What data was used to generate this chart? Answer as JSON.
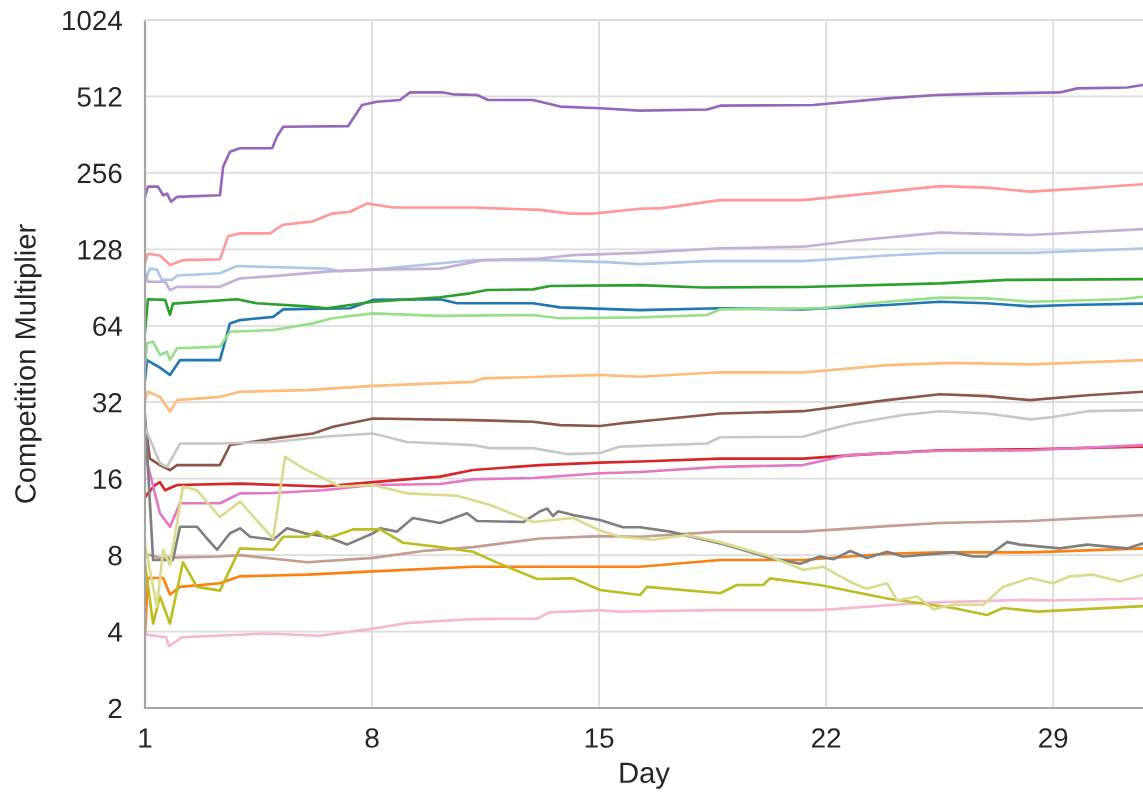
{
  "chart_data": {
    "type": "line",
    "xlabel": "Day",
    "ylabel": "Competition Multiplier",
    "xlim": [
      1,
      31.77
    ],
    "xticks": [
      1,
      8,
      15,
      22,
      29
    ],
    "ylim": [
      2,
      1024
    ],
    "yticks": [
      2,
      4,
      8,
      16,
      32,
      64,
      128,
      256,
      512,
      1024
    ],
    "log": "y",
    "grid": true,
    "series": [
      {
        "color": "#1f77b4",
        "x": [
          1.0,
          1.06,
          1.46,
          1.77,
          2.08,
          3.31,
          3.62,
          3.93,
          4.95,
          5.26,
          7.32,
          8.03,
          10.1,
          10.62,
          12.96,
          13.8,
          16.26,
          18.73,
          21.29,
          23.88,
          25.51,
          26.96,
          28.29,
          29.52,
          31.77
        ],
        "values": [
          39,
          46.9,
          43.8,
          41.0,
          46.9,
          46.9,
          65.4,
          67.4,
          69.4,
          74.3,
          75.0,
          80.9,
          81.4,
          78.5,
          78.5,
          75.6,
          73.8,
          75.0,
          74.3,
          77.3,
          79.6,
          78.5,
          76.3,
          77.3,
          78.2
        ]
      },
      {
        "color": "#aec7e8",
        "x": [
          1.0,
          1.15,
          1.37,
          1.52,
          1.83,
          1.99,
          3.31,
          3.84,
          6.61,
          7.01,
          8.03,
          11.11,
          13.18,
          15.25,
          16.26,
          18.33,
          21.29,
          23.88,
          25.51,
          28.29,
          31.77
        ],
        "values": [
          95,
          107.5,
          106.5,
          97,
          97,
          101,
          103,
          110,
          107.5,
          105,
          106.5,
          116,
          116,
          114,
          112,
          115,
          115,
          121,
          124,
          124,
          129
        ]
      },
      {
        "color": "#ff7f0e",
        "x": [
          1.0,
          1.09,
          1.56,
          1.77,
          2.08,
          3.31,
          3.93,
          6.0,
          8.03,
          11.11,
          15.03,
          16.26,
          18.73,
          21.29,
          23.88,
          25.51,
          28.29,
          31.77
        ],
        "values": [
          3.9,
          6.5,
          6.5,
          5.6,
          6.0,
          6.2,
          6.6,
          6.7,
          6.9,
          7.2,
          7.2,
          7.2,
          7.65,
          7.65,
          8.1,
          8.2,
          8.2,
          8.5
        ]
      },
      {
        "color": "#ffbb78",
        "x": [
          1.0,
          1.09,
          1.46,
          1.77,
          1.99,
          3.31,
          3.93,
          6.0,
          8.03,
          11.11,
          11.42,
          13.18,
          15.03,
          16.26,
          18.73,
          21.29,
          23.88,
          25.92,
          28.29,
          31.77
        ],
        "values": [
          32.6,
          35.2,
          33.6,
          29.4,
          32.6,
          33.6,
          35.2,
          35.7,
          37.1,
          38.5,
          39.7,
          40.3,
          41.0,
          40.3,
          42.0,
          41.9,
          44.8,
          45.7,
          45.1,
          46.9
        ]
      },
      {
        "color": "#2ca02c",
        "x": [
          1.0,
          1.09,
          1.62,
          1.77,
          1.86,
          3.84,
          4.45,
          6.0,
          6.61,
          8.03,
          10.1,
          11.02,
          11.55,
          12.96,
          13.49,
          16.26,
          18.21,
          21.29,
          25.51,
          27.58,
          31.77
        ],
        "values": [
          60,
          81.4,
          80.9,
          70.6,
          78.2,
          81.4,
          78.5,
          76.3,
          75.0,
          79.6,
          82.9,
          85.9,
          88.5,
          89.0,
          91.8,
          92.5,
          90.6,
          91.0,
          94.0,
          97.0,
          97.7
        ]
      },
      {
        "color": "#98df8a",
        "x": [
          1.0,
          1.06,
          1.25,
          1.46,
          1.68,
          1.77,
          1.99,
          3.31,
          3.62,
          4.95,
          6.18,
          6.77,
          8.03,
          10.1,
          12.96,
          13.8,
          16.26,
          18.33,
          18.73,
          21.81,
          23.88,
          25.51,
          26.96,
          28.29,
          31.06,
          31.77
        ],
        "values": [
          45,
          54.6,
          55.4,
          49.1,
          50.6,
          46.9,
          52.2,
          53.0,
          60.6,
          61.6,
          65.4,
          68.5,
          71.6,
          70.0,
          70.6,
          68.5,
          69.1,
          70.6,
          74.3,
          75.0,
          79.6,
          82.6,
          82.1,
          79.6,
          81.4,
          83.3
        ]
      },
      {
        "color": "#d62728",
        "x": [
          1.0,
          1.09,
          1.31,
          1.46,
          1.62,
          1.99,
          3.93,
          6.49,
          8.03,
          10.1,
          11.11,
          13.18,
          15.03,
          16.26,
          18.73,
          21.29,
          22.83,
          25.51,
          28.29,
          31.77
        ],
        "values": [
          13.5,
          14.0,
          15.1,
          15.5,
          14.4,
          15.1,
          15.3,
          14.9,
          15.5,
          16.3,
          17.3,
          18.1,
          18.5,
          18.7,
          19.2,
          19.2,
          19.8,
          20.7,
          20.9,
          21.4
        ]
      },
      {
        "color": "#ff9896",
        "x": [
          1.0,
          1.09,
          1.46,
          1.62,
          1.77,
          2.17,
          3.31,
          3.56,
          3.93,
          4.85,
          5.26,
          6.18,
          6.77,
          7.32,
          7.85,
          8.65,
          11.11,
          13.18,
          14.11,
          14.81,
          16.26,
          16.97,
          18.73,
          21.29,
          23.88,
          25.51,
          26.96,
          28.29,
          30.05,
          31.77
        ],
        "values": [
          113,
          123,
          121,
          116,
          111,
          116,
          117,
          144,
          148,
          148,
          160,
          165,
          177,
          180,
          194,
          187,
          187,
          183,
          177,
          177,
          185,
          186,
          200,
          200,
          216,
          227,
          224,
          216,
          223,
          231
        ]
      },
      {
        "color": "#9467bd",
        "x": [
          1.0,
          1.09,
          1.4,
          1.56,
          1.68,
          1.8,
          1.99,
          3.31,
          3.41,
          3.62,
          3.93,
          4.92,
          5.07,
          5.26,
          7.26,
          7.69,
          8.15,
          8.86,
          9.17,
          10.19,
          10.5,
          11.24,
          11.58,
          12.96,
          13.8,
          15.03,
          16.26,
          18.33,
          18.73,
          21.6,
          23.88,
          25.42,
          26.96,
          29.21,
          29.74,
          31.28,
          31.77
        ],
        "values": [
          206,
          226,
          226,
          209,
          212,
          197,
          206,
          209,
          271,
          310,
          320,
          320,
          356,
          389,
          391,
          474,
          488,
          496,
          531,
          531,
          522,
          519,
          496,
          496,
          467,
          460,
          450,
          455,
          471,
          474,
          503,
          519,
          525,
          531,
          551,
          555,
          568
        ]
      },
      {
        "color": "#c5b0d5",
        "x": [
          1.0,
          1.09,
          1.62,
          1.77,
          1.99,
          3.31,
          3.93,
          4.95,
          6.8,
          8.03,
          10.1,
          11.42,
          13.18,
          14.2,
          16.26,
          18.73,
          21.29,
          22.83,
          25.51,
          28.29,
          31.77
        ],
        "values": [
          103,
          95.4,
          95.4,
          88.5,
          91.1,
          91.1,
          98.4,
          100.4,
          105,
          106.5,
          107.5,
          116,
          117.8,
          121.4,
          124,
          129.2,
          131.1,
          138.3,
          149,
          145.8,
          153.7
        ]
      },
      {
        "color": "#8c564b",
        "x": [
          1.0,
          1.15,
          1.46,
          1.77,
          1.99,
          3.31,
          3.62,
          3.93,
          5.07,
          6.18,
          6.8,
          8.03,
          11.11,
          12.96,
          13.8,
          15.03,
          15.65,
          17.19,
          18.73,
          21.29,
          23.88,
          25.51,
          26.96,
          28.29,
          30.05,
          31.77
        ],
        "values": [
          27,
          19.2,
          18.1,
          17.3,
          18.1,
          18.1,
          21.7,
          22.0,
          23.1,
          24.1,
          25.6,
          27.6,
          27.2,
          26.8,
          26.0,
          25.8,
          26.4,
          27.6,
          28.9,
          29.5,
          32.6,
          34.4,
          33.8,
          32.6,
          34.1,
          35.2
        ]
      },
      {
        "color": "#c49c94",
        "x": [
          1.0,
          1.46,
          3.31,
          3.93,
          6.0,
          8.03,
          9.57,
          11.11,
          13.18,
          15.03,
          16.26,
          18.73,
          21.29,
          23.88,
          25.51,
          28.29,
          31.77
        ],
        "values": [
          8.1,
          7.8,
          7.9,
          8.0,
          7.5,
          7.8,
          8.3,
          8.6,
          9.3,
          9.5,
          9.45,
          9.9,
          9.9,
          10.4,
          10.7,
          10.9,
          11.5
        ]
      },
      {
        "color": "#e377c2",
        "x": [
          1.0,
          1.46,
          1.77,
          2.08,
          3.31,
          3.93,
          4.95,
          6.49,
          8.03,
          10.1,
          11.11,
          12.96,
          15.03,
          16.26,
          18.73,
          21.29,
          22.65,
          25.51,
          28.29,
          31.77
        ],
        "values": [
          20,
          11.7,
          10.35,
          12.8,
          12.8,
          14.0,
          14.05,
          14.4,
          15.1,
          15.25,
          15.9,
          16.1,
          16.8,
          17.0,
          17.8,
          18.1,
          19.8,
          20.6,
          20.7,
          21.7
        ]
      },
      {
        "color": "#f7b6d2",
        "x": [
          1.0,
          1.65,
          1.74,
          2.14,
          4.79,
          6.37,
          7.94,
          9.14,
          11.11,
          13.09,
          13.46,
          15.03,
          15.65,
          18.61,
          21.81,
          24.13,
          24.9,
          28.07,
          29.0,
          31.77
        ],
        "values": [
          3.9,
          3.8,
          3.5,
          3.8,
          3.93,
          3.85,
          4.09,
          4.33,
          4.48,
          4.5,
          4.76,
          4.85,
          4.79,
          4.86,
          4.86,
          5.1,
          5.19,
          5.33,
          5.3,
          5.4
        ]
      },
      {
        "color": "#7f7f7f",
        "x": [
          1.0,
          1.25,
          1.86,
          2.08,
          2.6,
          2.91,
          3.22,
          3.62,
          3.93,
          4.24,
          4.95,
          5.38,
          6.0,
          6.61,
          7.23,
          8.03,
          8.25,
          8.77,
          9.26,
          10.1,
          10.93,
          11.24,
          12.66,
          13.18,
          13.4,
          13.58,
          13.74,
          14.2,
          15.03,
          15.74,
          16.26,
          17.19,
          18.73,
          20.27,
          21.2,
          21.81,
          22.22,
          22.74,
          23.26,
          23.88,
          24.37,
          25.92,
          26.53,
          26.96,
          27.58,
          27.98,
          29.21,
          30.05,
          31.28,
          31.77
        ],
        "values": [
          28.5,
          7.65,
          7.65,
          10.35,
          10.35,
          9.3,
          8.4,
          9.75,
          10.2,
          9.45,
          9.2,
          10.2,
          9.7,
          9.45,
          8.8,
          9.75,
          10.2,
          9.9,
          11.2,
          10.7,
          11.7,
          10.9,
          10.8,
          11.9,
          12.2,
          11.4,
          11.9,
          11.5,
          11.0,
          10.3,
          10.3,
          9.9,
          8.9,
          7.8,
          7.4,
          7.9,
          7.7,
          8.3,
          7.8,
          8.25,
          7.9,
          8.2,
          7.9,
          7.9,
          9.0,
          8.8,
          8.5,
          8.8,
          8.5,
          8.9
        ]
      },
      {
        "color": "#c7c7c7",
        "x": [
          1.0,
          1.46,
          1.68,
          2.08,
          3.31,
          4.95,
          6.49,
          8.03,
          9.08,
          11.11,
          11.64,
          12.96,
          14.01,
          15.03,
          15.65,
          18.33,
          18.73,
          21.29,
          22.03,
          22.83,
          24.37,
          25.51,
          26.96,
          28.29,
          29.0,
          30.05,
          31.77
        ],
        "values": [
          25.5,
          18.4,
          17.8,
          22.0,
          22.0,
          22.3,
          23.4,
          24.1,
          22.3,
          21.7,
          21.1,
          21.1,
          20.0,
          20.2,
          21.4,
          22.0,
          23.3,
          23.4,
          24.9,
          26.4,
          28.5,
          29.5,
          28.9,
          27.4,
          28.0,
          29.5,
          29.8
        ]
      },
      {
        "color": "#bcbd22",
        "x": [
          1.0,
          1.25,
          1.46,
          1.77,
          2.17,
          2.6,
          3.31,
          3.93,
          4.95,
          5.26,
          6.0,
          6.3,
          6.61,
          7.41,
          8.25,
          8.96,
          10.1,
          11.11,
          11.89,
          13.09,
          14.2,
          15.03,
          16.26,
          16.48,
          18.73,
          19.25,
          20.06,
          20.27,
          21.81,
          23.88,
          25.92,
          26.96,
          27.46,
          28.51,
          31.77
        ],
        "values": [
          7.4,
          4.3,
          5.5,
          4.3,
          7.5,
          6.0,
          5.8,
          8.5,
          8.4,
          9.45,
          9.45,
          9.9,
          9.3,
          10.1,
          10.1,
          8.95,
          8.6,
          8.25,
          7.44,
          6.44,
          6.48,
          5.83,
          5.57,
          6.0,
          5.66,
          6.1,
          6.1,
          6.48,
          6.1,
          5.4,
          4.95,
          4.65,
          4.95,
          4.79,
          5.04
        ]
      },
      {
        "color": "#dbdb8d",
        "x": [
          1.0,
          1.37,
          1.56,
          1.77,
          2.17,
          2.6,
          3.31,
          3.93,
          4.95,
          5.32,
          5.87,
          7.01,
          8.03,
          9.08,
          10.62,
          11.64,
          12.96,
          14.2,
          15.03,
          15.65,
          16.66,
          17.71,
          18.73,
          20.27,
          21.29,
          21.91,
          22.34,
          22.83,
          23.26,
          23.88,
          24.19,
          24.81,
          25.3,
          25.92,
          26.84,
          27.46,
          28.29,
          29.0,
          29.52,
          30.23,
          31.06,
          31.77
        ],
        "values": [
          8.8,
          5.0,
          8.4,
          7.3,
          14.9,
          14.4,
          11.3,
          13.0,
          9.3,
          19.5,
          17.6,
          14.9,
          15.1,
          14.0,
          13.7,
          12.6,
          10.8,
          11.2,
          10.0,
          9.45,
          9.2,
          9.6,
          9.0,
          7.9,
          7.0,
          7.2,
          6.7,
          6.2,
          5.9,
          6.2,
          5.3,
          5.5,
          4.9,
          5.1,
          5.1,
          6.0,
          6.5,
          6.2,
          6.6,
          6.7,
          6.3,
          6.7
        ]
      }
    ]
  }
}
